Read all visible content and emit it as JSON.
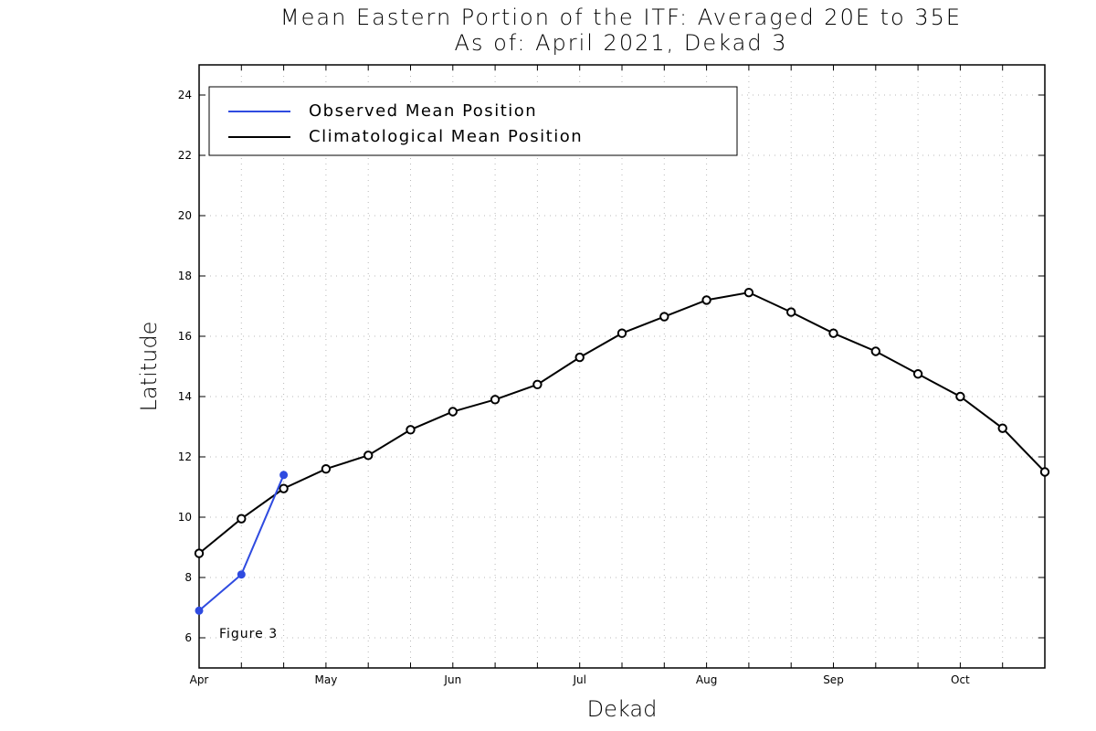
{
  "chart_data": {
    "type": "line",
    "title": "Mean Eastern Portion of the ITF: Averaged 20E to 35E",
    "subtitle": "As of: April 2021, Dekad 3",
    "xlabel": "Dekad",
    "ylabel": "Latitude",
    "ylim": [
      5,
      25
    ],
    "y_ticks": [
      6,
      8,
      10,
      12,
      14,
      16,
      18,
      20,
      22,
      24
    ],
    "xlim": [
      0,
      20
    ],
    "month_ticks": [
      {
        "label": "Apr",
        "x": 0
      },
      {
        "label": "May",
        "x": 3
      },
      {
        "label": "Jun",
        "x": 6
      },
      {
        "label": "Jul",
        "x": 9
      },
      {
        "label": "Aug",
        "x": 12
      },
      {
        "label": "Sep",
        "x": 15
      },
      {
        "label": "Oct",
        "x": 18
      }
    ],
    "grid": true,
    "legend_placement": "top-left",
    "annotation": "Figure 3",
    "series": [
      {
        "name": "Observed Mean Position",
        "color": "#2f4be0",
        "marker": "filled-circle",
        "x": [
          0,
          1,
          2
        ],
        "values": [
          6.9,
          8.1,
          11.4
        ]
      },
      {
        "name": "Climatological Mean Position",
        "color": "#000000",
        "marker": "open-circle",
        "x": [
          0,
          1,
          2,
          3,
          4,
          5,
          6,
          7,
          8,
          9,
          10,
          11,
          12,
          13,
          14,
          15,
          16,
          17,
          18,
          19,
          20
        ],
        "values": [
          8.8,
          9.95,
          10.95,
          11.6,
          12.05,
          12.9,
          13.5,
          13.9,
          14.4,
          15.3,
          16.1,
          16.65,
          17.2,
          17.45,
          16.8,
          16.1,
          15.5,
          14.75,
          14.0,
          12.95,
          11.5
        ]
      }
    ]
  }
}
